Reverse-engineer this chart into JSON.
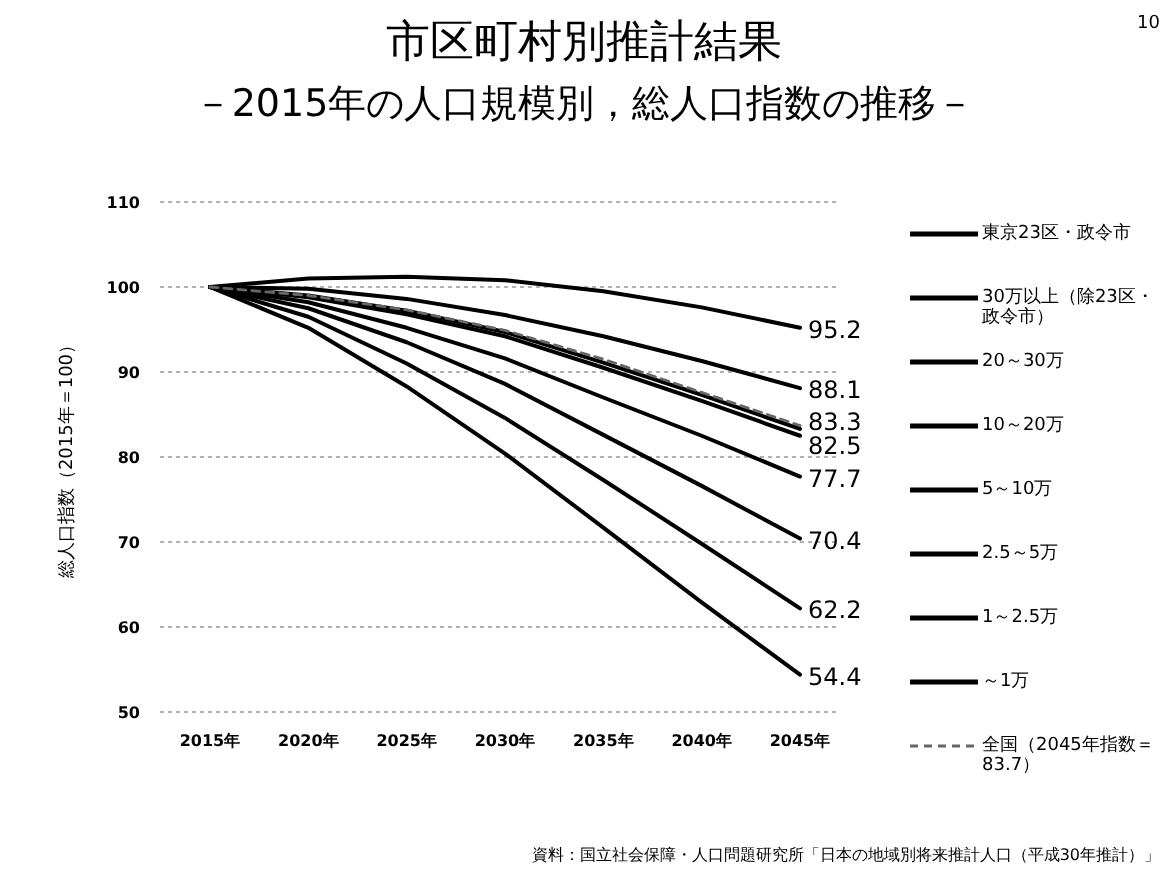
{
  "chart_data": {
    "type": "line",
    "title": "市区町村別推計結果",
    "subtitle": "－2015年の人口規模別，総人口指数の推移－",
    "ylabel": "総人口指数（2015年＝100）",
    "annotations": [
      "10",
      "資料：国立社会保障・人口問題研究所「日本の地域別将来推計人口（平成30年推計）」"
    ],
    "categories": [
      "2015年",
      "2020年",
      "2025年",
      "2030年",
      "2035年",
      "2040年",
      "2045年"
    ],
    "ylim": [
      50,
      110
    ],
    "yticks": [
      50,
      60,
      70,
      80,
      90,
      100,
      110
    ],
    "grid": "y",
    "legend": "right",
    "marker": "none",
    "line_style": "solid",
    "series": [
      {
        "name": "東京23区・政令市",
        "color": "#000000",
        "values": [
          100,
          101.0,
          101.2,
          100.8,
          99.5,
          97.6,
          95.2
        ],
        "value_labels": [
          null,
          null,
          null,
          null,
          null,
          null,
          "95.2"
        ]
      },
      {
        "name": "30万以上（除23区・政令市）",
        "color": "#000000",
        "values": [
          100,
          99.8,
          98.6,
          96.7,
          94.2,
          91.3,
          88.1
        ],
        "value_labels": [
          null,
          null,
          null,
          null,
          null,
          null,
          "88.1"
        ]
      },
      {
        "name": "20～30万",
        "color": "#000000",
        "values": [
          100,
          99.0,
          97.2,
          94.7,
          91.1,
          87.3,
          83.3
        ],
        "value_labels": [
          null,
          null,
          null,
          null,
          null,
          null,
          "83.3"
        ]
      },
      {
        "name": "10～20万",
        "color": "#000000",
        "values": [
          100,
          98.8,
          96.8,
          94.2,
          90.5,
          86.6,
          82.5
        ],
        "value_labels": [
          null,
          null,
          null,
          null,
          null,
          null,
          "82.5"
        ]
      },
      {
        "name": "5～10万",
        "color": "#000000",
        "values": [
          100,
          98.2,
          95.2,
          91.6,
          87.0,
          82.5,
          77.7
        ],
        "value_labels": [
          null,
          null,
          null,
          null,
          null,
          null,
          "77.7"
        ]
      },
      {
        "name": "2.5～5万",
        "color": "#000000",
        "values": [
          100,
          97.5,
          93.5,
          88.6,
          82.6,
          76.6,
          70.4
        ],
        "value_labels": [
          null,
          null,
          null,
          null,
          null,
          null,
          "70.4"
        ]
      },
      {
        "name": "1～2.5万",
        "color": "#000000",
        "values": [
          100,
          96.5,
          91.0,
          84.6,
          77.3,
          69.8,
          62.2
        ],
        "value_labels": [
          null,
          null,
          null,
          null,
          null,
          null,
          "62.2"
        ]
      },
      {
        "name": "～1万",
        "color": "#000000",
        "values": [
          100,
          95.2,
          88.3,
          80.4,
          71.7,
          62.9,
          54.4
        ],
        "value_labels": [
          null,
          null,
          null,
          null,
          null,
          null,
          "54.4"
        ]
      },
      {
        "name": "全国（2045年指数＝83.7）",
        "color": "#666666",
        "line_style": "dashed",
        "values": [
          100,
          99.0,
          97.3,
          94.9,
          91.5,
          87.6,
          83.7
        ]
      }
    ]
  }
}
